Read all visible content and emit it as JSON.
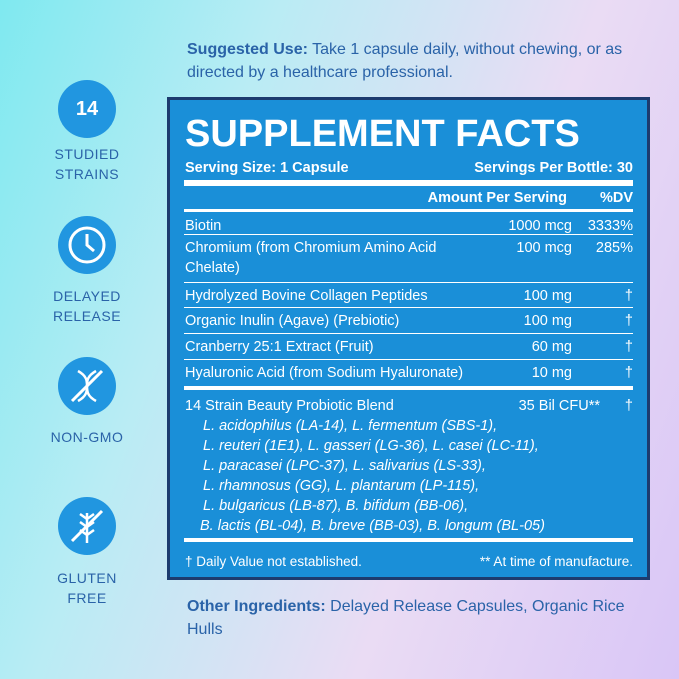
{
  "suggested_use": {
    "label": "Suggested Use:",
    "text": "Take 1 capsule daily, without chewing, or as directed by a healthcare professional."
  },
  "badges": [
    {
      "number": "14",
      "label": [
        "STUDIED",
        "STRAINS"
      ]
    },
    {
      "label": [
        "DELAYED",
        "RELEASE"
      ]
    },
    {
      "label": [
        "NON-GMO"
      ]
    },
    {
      "label": [
        "GLUTEN",
        "FREE"
      ]
    }
  ],
  "facts": {
    "title": "SUPPLEMENT FACTS",
    "serving_size": "Serving Size: 1 Capsule",
    "servings_per_bottle": "Servings Per Bottle: 30",
    "headers": [
      "Amount Per Serving",
      "%DV"
    ],
    "rows": [
      [
        "Biotin",
        "1000 mcg",
        "3333%"
      ],
      [
        "Chromium (from Chromium Amino Acid Chelate)",
        "100 mcg",
        "285%"
      ],
      [
        "Hydrolyzed Bovine Collagen Peptides",
        "100 mg",
        "†"
      ],
      [
        "Organic Inulin (Agave) (Prebiotic)",
        "100 mg",
        "†"
      ],
      [
        "Cranberry 25:1 Extract (Fruit)",
        "60 mg",
        "†"
      ],
      [
        "Hyaluronic Acid (from Sodium Hyaluronate)",
        "10 mg",
        "†"
      ]
    ],
    "blend": {
      "name": "14 Strain Beauty Probiotic Blend",
      "amount": "35 Bil CFU**",
      "dv": "†",
      "strains": [
        "L. acidophilus (LA-14), L. fermentum (SBS-1),",
        "L. reuteri (1E1), L. gasseri (LG-36), L. casei (LC-11),",
        "L. paracasei (LPC-37), L. salivarius (LS-33),",
        "L. rhamnosus (GG), L. plantarum (LP-115),",
        "L. bulgaricus (LB-87), B. bifidum (BB-06),",
        "B. lactis (BL-04), B. breve (BB-03), B. longum (BL-05)"
      ]
    },
    "footnotes": [
      "† Daily Value not established.",
      "** At time of manufacture."
    ]
  },
  "other_ingredients": {
    "label": "Other Ingredients:",
    "text": "Delayed Release Capsules, Organic Rice Hulls"
  }
}
